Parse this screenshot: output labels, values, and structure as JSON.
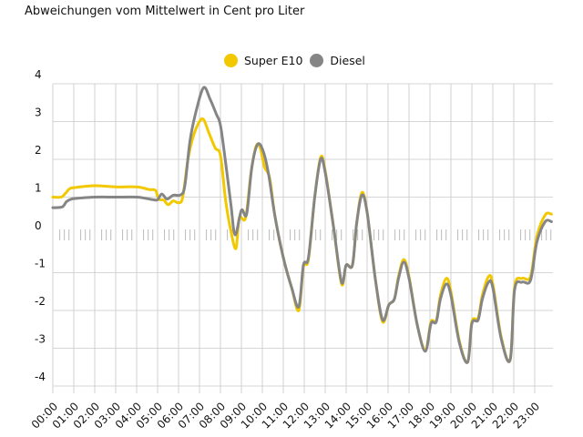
{
  "chart_data": {
    "type": "line",
    "title": "",
    "subtitle": "Abweichungen vom Mittelwert in Cent pro Liter",
    "xlabel": "",
    "ylabel": "",
    "ylim": [
      -4,
      4
    ],
    "yticks": [
      "4",
      "3",
      "2",
      "1",
      "0",
      "-1",
      "-2",
      "-3",
      "-4"
    ],
    "yticks_values": [
      4,
      3,
      2,
      1,
      0,
      -1,
      -2,
      -3,
      -4
    ],
    "xticks": [
      "00:00",
      "01:00",
      "02:00",
      "03:00",
      "04:00",
      "05:00",
      "06:00",
      "07:00",
      "08:00",
      "09:00",
      "10:00",
      "11:00",
      "12:00",
      "13:00",
      "14:00",
      "15:00",
      "16:00",
      "17:00",
      "18:00",
      "19:00",
      "20:00",
      "21:00",
      "22:00",
      "23:00"
    ],
    "grid": true,
    "legend_position": "top-center",
    "series": [
      {
        "name": "Super E10",
        "color": "#f2c800",
        "points": [
          [
            0,
            1.0
          ],
          [
            0.4,
            1.0
          ],
          [
            0.6,
            1.1
          ],
          [
            0.8,
            1.22
          ],
          [
            1,
            1.25
          ],
          [
            2,
            1.3
          ],
          [
            3,
            1.27
          ],
          [
            4,
            1.27
          ],
          [
            4.6,
            1.2
          ],
          [
            4.9,
            1.18
          ],
          [
            5.05,
            0.95
          ],
          [
            5.3,
            0.92
          ],
          [
            5.5,
            0.8
          ],
          [
            5.75,
            0.9
          ],
          [
            6.0,
            0.85
          ],
          [
            6.2,
            1.0
          ],
          [
            6.45,
            2.0
          ],
          [
            6.7,
            2.6
          ],
          [
            7.0,
            3.0
          ],
          [
            7.2,
            3.05
          ],
          [
            7.45,
            2.7
          ],
          [
            7.75,
            2.3
          ],
          [
            8.0,
            2.1
          ],
          [
            8.25,
            0.9
          ],
          [
            8.5,
            0.1
          ],
          [
            8.74,
            -0.36
          ],
          [
            8.9,
            0.45
          ],
          [
            9.2,
            0.45
          ],
          [
            9.45,
            1.6
          ],
          [
            9.7,
            2.35
          ],
          [
            9.9,
            2.3
          ],
          [
            10.1,
            1.8
          ],
          [
            10.35,
            1.5
          ],
          [
            10.6,
            0.5
          ],
          [
            11.0,
            -0.6
          ],
          [
            11.4,
            -1.4
          ],
          [
            11.74,
            -2.0
          ],
          [
            11.96,
            -0.85
          ],
          [
            12.2,
            -0.65
          ],
          [
            12.5,
            1.0
          ],
          [
            12.78,
            2.05
          ],
          [
            13.0,
            1.7
          ],
          [
            13.4,
            0.2
          ],
          [
            13.78,
            -1.3
          ],
          [
            14.0,
            -0.8
          ],
          [
            14.3,
            -0.8
          ],
          [
            14.5,
            0.3
          ],
          [
            14.75,
            1.12
          ],
          [
            15.0,
            0.6
          ],
          [
            15.4,
            -1.2
          ],
          [
            15.74,
            -2.3
          ],
          [
            16.04,
            -1.85
          ],
          [
            16.3,
            -1.7
          ],
          [
            16.5,
            -1.1
          ],
          [
            16.75,
            -0.65
          ],
          [
            17.0,
            -1.1
          ],
          [
            17.4,
            -2.4
          ],
          [
            17.78,
            -3.05
          ],
          [
            18.05,
            -2.3
          ],
          [
            18.3,
            -2.28
          ],
          [
            18.5,
            -1.6
          ],
          [
            18.78,
            -1.15
          ],
          [
            19.0,
            -1.5
          ],
          [
            19.4,
            -2.8
          ],
          [
            19.8,
            -3.37
          ],
          [
            20.0,
            -2.3
          ],
          [
            20.3,
            -2.2
          ],
          [
            20.5,
            -1.6
          ],
          [
            20.8,
            -1.1
          ],
          [
            21.0,
            -1.3
          ],
          [
            21.4,
            -2.7
          ],
          [
            21.83,
            -3.3
          ],
          [
            22.04,
            -1.37
          ],
          [
            22.4,
            -1.15
          ],
          [
            22.8,
            -1.1
          ],
          [
            23.1,
            -0.05
          ],
          [
            23.5,
            0.53
          ],
          [
            23.8,
            0.55
          ]
        ]
      },
      {
        "name": "Diesel",
        "color": "#858585",
        "points": [
          [
            0,
            0.72
          ],
          [
            0.45,
            0.74
          ],
          [
            0.65,
            0.88
          ],
          [
            0.9,
            0.95
          ],
          [
            1.2,
            0.97
          ],
          [
            2,
            1.0
          ],
          [
            3,
            1.0
          ],
          [
            4,
            1.0
          ],
          [
            4.4,
            0.97
          ],
          [
            4.8,
            0.93
          ],
          [
            5.0,
            0.93
          ],
          [
            5.2,
            1.08
          ],
          [
            5.45,
            0.95
          ],
          [
            5.75,
            1.05
          ],
          [
            6.1,
            1.06
          ],
          [
            6.3,
            1.3
          ],
          [
            6.55,
            2.5
          ],
          [
            6.85,
            3.3
          ],
          [
            7.2,
            3.9
          ],
          [
            7.5,
            3.6
          ],
          [
            7.8,
            3.2
          ],
          [
            8.0,
            2.9
          ],
          [
            8.25,
            1.9
          ],
          [
            8.5,
            0.8
          ],
          [
            8.7,
            0.0
          ],
          [
            9.0,
            0.65
          ],
          [
            9.25,
            0.55
          ],
          [
            9.5,
            1.8
          ],
          [
            9.78,
            2.4
          ],
          [
            10.05,
            2.2
          ],
          [
            10.3,
            1.6
          ],
          [
            10.6,
            0.5
          ],
          [
            11.0,
            -0.6
          ],
          [
            11.4,
            -1.4
          ],
          [
            11.74,
            -1.9
          ],
          [
            11.96,
            -0.8
          ],
          [
            12.2,
            -0.6
          ],
          [
            12.5,
            1.0
          ],
          [
            12.78,
            2.0
          ],
          [
            13.0,
            1.65
          ],
          [
            13.4,
            0.2
          ],
          [
            13.78,
            -1.25
          ],
          [
            14.0,
            -0.8
          ],
          [
            14.3,
            -0.8
          ],
          [
            14.5,
            0.3
          ],
          [
            14.75,
            1.05
          ],
          [
            15.0,
            0.6
          ],
          [
            15.4,
            -1.2
          ],
          [
            15.74,
            -2.25
          ],
          [
            16.04,
            -1.85
          ],
          [
            16.3,
            -1.7
          ],
          [
            16.5,
            -1.15
          ],
          [
            16.75,
            -0.72
          ],
          [
            17.0,
            -1.15
          ],
          [
            17.4,
            -2.4
          ],
          [
            17.78,
            -3.08
          ],
          [
            18.05,
            -2.35
          ],
          [
            18.3,
            -2.3
          ],
          [
            18.5,
            -1.7
          ],
          [
            18.78,
            -1.3
          ],
          [
            19.0,
            -1.6
          ],
          [
            19.4,
            -2.85
          ],
          [
            19.8,
            -3.37
          ],
          [
            20.0,
            -2.35
          ],
          [
            20.3,
            -2.25
          ],
          [
            20.5,
            -1.7
          ],
          [
            20.8,
            -1.25
          ],
          [
            21.0,
            -1.4
          ],
          [
            21.4,
            -2.75
          ],
          [
            21.83,
            -3.3
          ],
          [
            22.04,
            -1.45
          ],
          [
            22.4,
            -1.25
          ],
          [
            22.8,
            -1.2
          ],
          [
            23.1,
            -0.2
          ],
          [
            23.5,
            0.35
          ],
          [
            23.8,
            0.35
          ]
        ]
      }
    ]
  }
}
